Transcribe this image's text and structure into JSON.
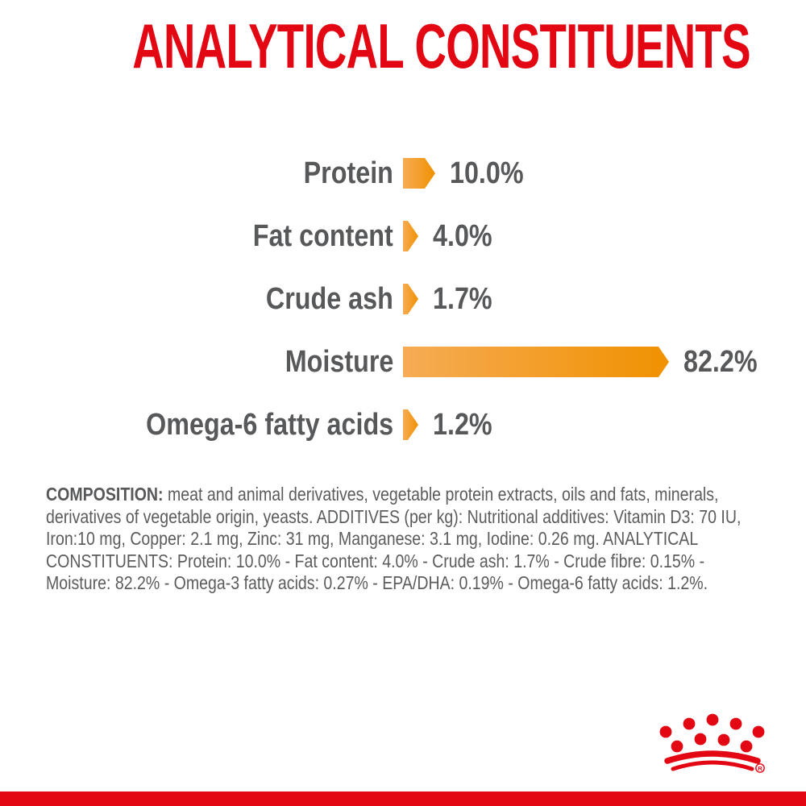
{
  "header": {
    "title": "ANALYTICAL CONSTITUENTS"
  },
  "chart_data": {
    "type": "bar",
    "orientation": "horizontal",
    "title": "ANALYTICAL CONSTITUENTS",
    "categories": [
      "Protein",
      "Fat content",
      "Crude ash",
      "Moisture",
      "Omega-6 fatty acids"
    ],
    "values": [
      10.0,
      4.0,
      1.7,
      82.2,
      1.2
    ],
    "value_labels": [
      "10.0%",
      "4.0%",
      "1.7%",
      "82.2%",
      "1.2%"
    ],
    "xlim": [
      0,
      100
    ],
    "grid": false,
    "legend": false,
    "bar_style": "arrow-right",
    "bar_gradient": [
      "#F6AC55",
      "#F09100"
    ],
    "label_color": "#57585A"
  },
  "composition": {
    "heading": "COMPOSITION:",
    "body": " meat and animal derivatives, vegetable protein extracts, oils and fats, minerals, derivatives of vegetable origin, yeasts. ADDITIVES (per kg): Nutritional additives: Vitamin D3: 70 IU, Iron:10 mg, Copper: 2.1 mg, Zinc: 31 mg, Manganese: 3.1 mg, Iodine: 0.26 mg. ANALYTICAL CONSTITUENTS: Protein: 10.0% - Fat content: 4.0% - Crude ash: 1.7% - Crude fibre: 0.15% - Moisture: 82.2% - Omega-3 fatty acids: 0.27% - EPA/DHA: 0.19% - Omega-6 fatty acids: 1.2%."
  },
  "footer": {
    "logo": "royal-canin-crown",
    "registered_mark": "R"
  },
  "colors": {
    "brand_red": "#E30613",
    "bar_orange_light": "#F6AC55",
    "bar_orange_dark": "#F09100",
    "text_gray": "#57585A"
  }
}
